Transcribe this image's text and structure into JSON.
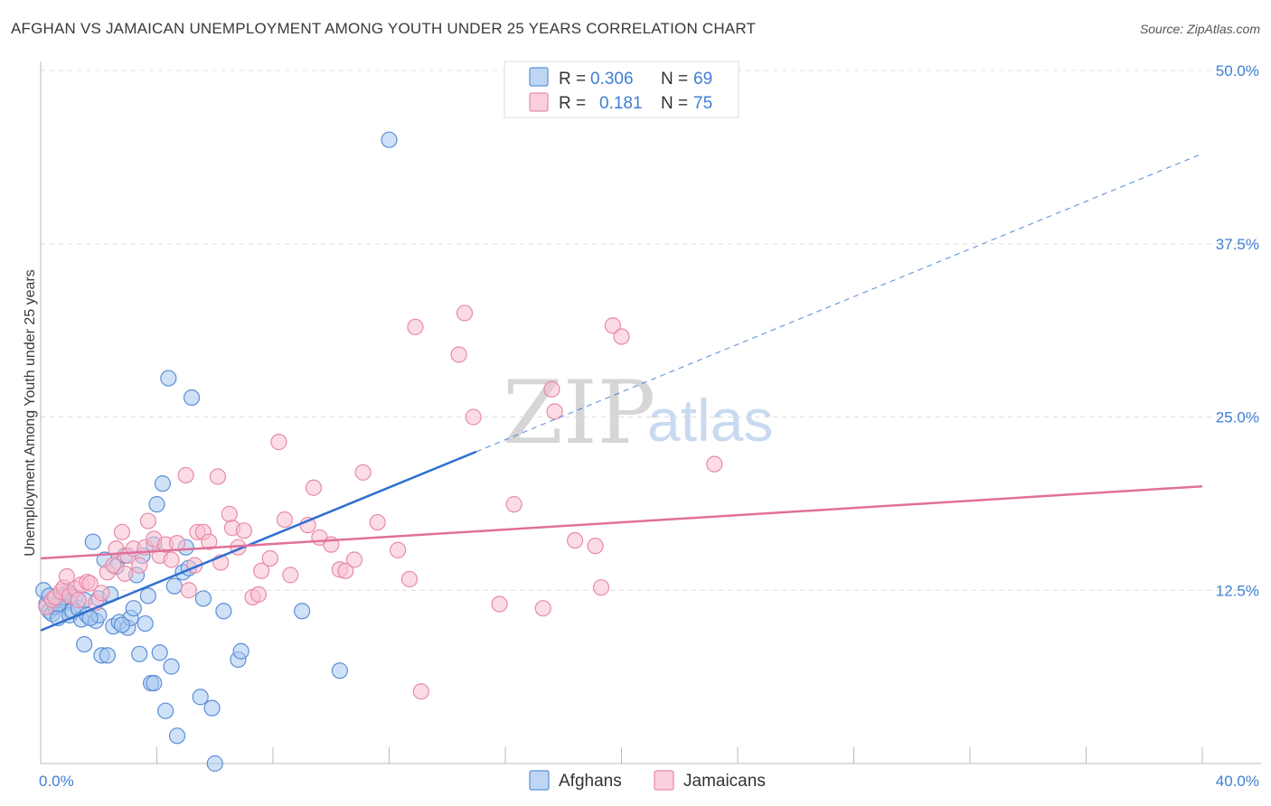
{
  "page": {
    "title": "AFGHAN VS JAMAICAN UNEMPLOYMENT AMONG YOUTH UNDER 25 YEARS CORRELATION CHART",
    "source": "Source: ZipAtlas.com",
    "watermark_zip": "ZIP",
    "watermark_atlas": "atlas"
  },
  "legend_top": {
    "rows": [
      {
        "r_label": "R =",
        "r_value": "0.306",
        "n_label": "N =",
        "n_value": "69"
      },
      {
        "r_label": "R =",
        "r_value": "0.181",
        "n_label": "N =",
        "n_value": "75"
      }
    ]
  },
  "legend_bottom": {
    "items": [
      {
        "label": "Afghans"
      },
      {
        "label": "Jamaicans"
      }
    ]
  },
  "colors": {
    "afghan_fill": "#a8c8f0",
    "afghan_stroke": "#5b8fd6",
    "afghan_line": "#2f6fd0",
    "jamaican_fill": "#f7bfd0",
    "jamaican_stroke": "#e88aa8",
    "jamaican_line": "#e0709a",
    "grid": "#dddddd",
    "tick_text": "#3f7fd4"
  },
  "chart_data": {
    "type": "scatter",
    "title": "AFGHAN VS JAMAICAN UNEMPLOYMENT AMONG YOUTH UNDER 25 YEARS CORRELATION CHART",
    "xlabel": "",
    "ylabel": "Unemployment Among Youth under 25 years",
    "xlim": [
      0,
      40
    ],
    "ylim": [
      0,
      50
    ],
    "x_tick_labels": [
      {
        "value": 0,
        "label": "0.0%"
      },
      {
        "value": 40,
        "label": "40.0%"
      }
    ],
    "y_ticks": [
      {
        "value": 12.5,
        "label": "12.5%"
      },
      {
        "value": 25,
        "label": "25.0%"
      },
      {
        "value": 37.5,
        "label": "37.5%"
      },
      {
        "value": 50,
        "label": "50.0%"
      }
    ],
    "series": [
      {
        "name": "Afghans",
        "R": 0.306,
        "N": 69,
        "trend": {
          "x0": 0,
          "y0": 9.6,
          "x1": 15,
          "y1": 22.5,
          "dashed_to_x": 40,
          "dashed_to_y": 44.0
        },
        "points": [
          [
            0.1,
            12.5
          ],
          [
            0.2,
            11.5
          ],
          [
            0.3,
            11.0
          ],
          [
            0.3,
            12.1
          ],
          [
            0.4,
            10.8
          ],
          [
            0.5,
            11.3
          ],
          [
            0.5,
            12.0
          ],
          [
            0.6,
            10.5
          ],
          [
            0.7,
            11.8
          ],
          [
            0.8,
            12.2
          ],
          [
            0.9,
            11.6
          ],
          [
            1.0,
            10.7
          ],
          [
            1.0,
            12.3
          ],
          [
            1.1,
            11.0
          ],
          [
            1.2,
            12.0
          ],
          [
            1.3,
            11.2
          ],
          [
            1.4,
            10.4
          ],
          [
            1.5,
            8.6
          ],
          [
            1.5,
            11.8
          ],
          [
            1.6,
            10.7
          ],
          [
            1.8,
            16.0
          ],
          [
            1.9,
            10.3
          ],
          [
            2.0,
            10.7
          ],
          [
            2.0,
            11.9
          ],
          [
            2.1,
            7.8
          ],
          [
            2.2,
            14.7
          ],
          [
            2.3,
            7.8
          ],
          [
            2.4,
            12.2
          ],
          [
            2.5,
            9.9
          ],
          [
            2.6,
            14.2
          ],
          [
            2.7,
            10.2
          ],
          [
            2.9,
            15.0
          ],
          [
            3.0,
            9.8
          ],
          [
            3.1,
            10.5
          ],
          [
            3.2,
            11.2
          ],
          [
            3.3,
            13.6
          ],
          [
            3.4,
            7.9
          ],
          [
            3.5,
            15.0
          ],
          [
            3.6,
            10.1
          ],
          [
            3.7,
            12.1
          ],
          [
            3.8,
            5.8
          ],
          [
            3.9,
            15.8
          ],
          [
            4.0,
            18.7
          ],
          [
            4.1,
            8.0
          ],
          [
            4.2,
            20.2
          ],
          [
            4.3,
            3.8
          ],
          [
            4.4,
            27.8
          ],
          [
            4.5,
            7.0
          ],
          [
            4.6,
            12.8
          ],
          [
            4.7,
            2.0
          ],
          [
            4.9,
            13.8
          ],
          [
            5.0,
            15.6
          ],
          [
            5.1,
            14.1
          ],
          [
            5.2,
            26.4
          ],
          [
            5.5,
            4.8
          ],
          [
            5.6,
            11.9
          ],
          [
            5.9,
            4.0
          ],
          [
            6.3,
            11.0
          ],
          [
            6.8,
            7.5
          ],
          [
            6.9,
            8.1
          ],
          [
            6.0,
            0.0
          ],
          [
            9.0,
            11.0
          ],
          [
            10.3,
            6.7
          ],
          [
            12.0,
            45.0
          ],
          [
            0.8,
            12.0
          ],
          [
            1.7,
            10.5
          ],
          [
            2.8,
            10.0
          ],
          [
            3.9,
            5.8
          ],
          [
            0.6,
            11.5
          ]
        ]
      },
      {
        "name": "Jamaicans",
        "R": 0.181,
        "N": 75,
        "trend": {
          "x0": 0,
          "y0": 14.8,
          "x1": 40,
          "y1": 20.0
        },
        "points": [
          [
            0.2,
            11.3
          ],
          [
            0.4,
            11.8
          ],
          [
            0.5,
            12.0
          ],
          [
            0.7,
            12.4
          ],
          [
            0.8,
            12.7
          ],
          [
            0.9,
            13.5
          ],
          [
            1.0,
            12.1
          ],
          [
            1.2,
            12.6
          ],
          [
            1.3,
            11.8
          ],
          [
            1.4,
            12.9
          ],
          [
            1.6,
            13.1
          ],
          [
            1.7,
            13.0
          ],
          [
            1.9,
            11.6
          ],
          [
            2.1,
            12.3
          ],
          [
            2.3,
            13.8
          ],
          [
            2.5,
            14.3
          ],
          [
            2.6,
            15.5
          ],
          [
            2.8,
            16.7
          ],
          [
            2.9,
            13.7
          ],
          [
            3.0,
            15.0
          ],
          [
            3.2,
            15.5
          ],
          [
            3.4,
            14.3
          ],
          [
            3.6,
            15.6
          ],
          [
            3.7,
            17.5
          ],
          [
            3.9,
            16.2
          ],
          [
            4.1,
            15.0
          ],
          [
            4.3,
            15.8
          ],
          [
            4.5,
            14.7
          ],
          [
            4.7,
            15.9
          ],
          [
            5.0,
            20.8
          ],
          [
            5.1,
            12.5
          ],
          [
            5.3,
            14.3
          ],
          [
            5.4,
            16.7
          ],
          [
            5.6,
            16.7
          ],
          [
            5.8,
            16.0
          ],
          [
            6.1,
            20.7
          ],
          [
            6.2,
            14.5
          ],
          [
            6.5,
            18.0
          ],
          [
            6.6,
            17.0
          ],
          [
            6.8,
            15.6
          ],
          [
            7.0,
            16.8
          ],
          [
            7.3,
            12.0
          ],
          [
            7.5,
            12.2
          ],
          [
            7.6,
            13.9
          ],
          [
            7.9,
            14.8
          ],
          [
            8.2,
            23.2
          ],
          [
            8.4,
            17.6
          ],
          [
            8.6,
            13.6
          ],
          [
            9.2,
            17.2
          ],
          [
            9.4,
            19.9
          ],
          [
            9.6,
            16.3
          ],
          [
            10.0,
            15.8
          ],
          [
            10.3,
            14.0
          ],
          [
            10.5,
            13.9
          ],
          [
            10.8,
            14.7
          ],
          [
            11.1,
            21.0
          ],
          [
            11.6,
            17.4
          ],
          [
            12.3,
            15.4
          ],
          [
            12.7,
            13.3
          ],
          [
            12.9,
            31.5
          ],
          [
            13.1,
            5.2
          ],
          [
            14.4,
            29.5
          ],
          [
            14.6,
            32.5
          ],
          [
            14.9,
            25.0
          ],
          [
            15.8,
            11.5
          ],
          [
            16.3,
            18.7
          ],
          [
            17.3,
            11.2
          ],
          [
            17.6,
            27.0
          ],
          [
            17.7,
            25.4
          ],
          [
            18.4,
            16.1
          ],
          [
            19.1,
            15.7
          ],
          [
            19.3,
            12.7
          ],
          [
            19.7,
            31.6
          ],
          [
            20.0,
            30.8
          ],
          [
            23.2,
            21.6
          ]
        ]
      }
    ]
  }
}
